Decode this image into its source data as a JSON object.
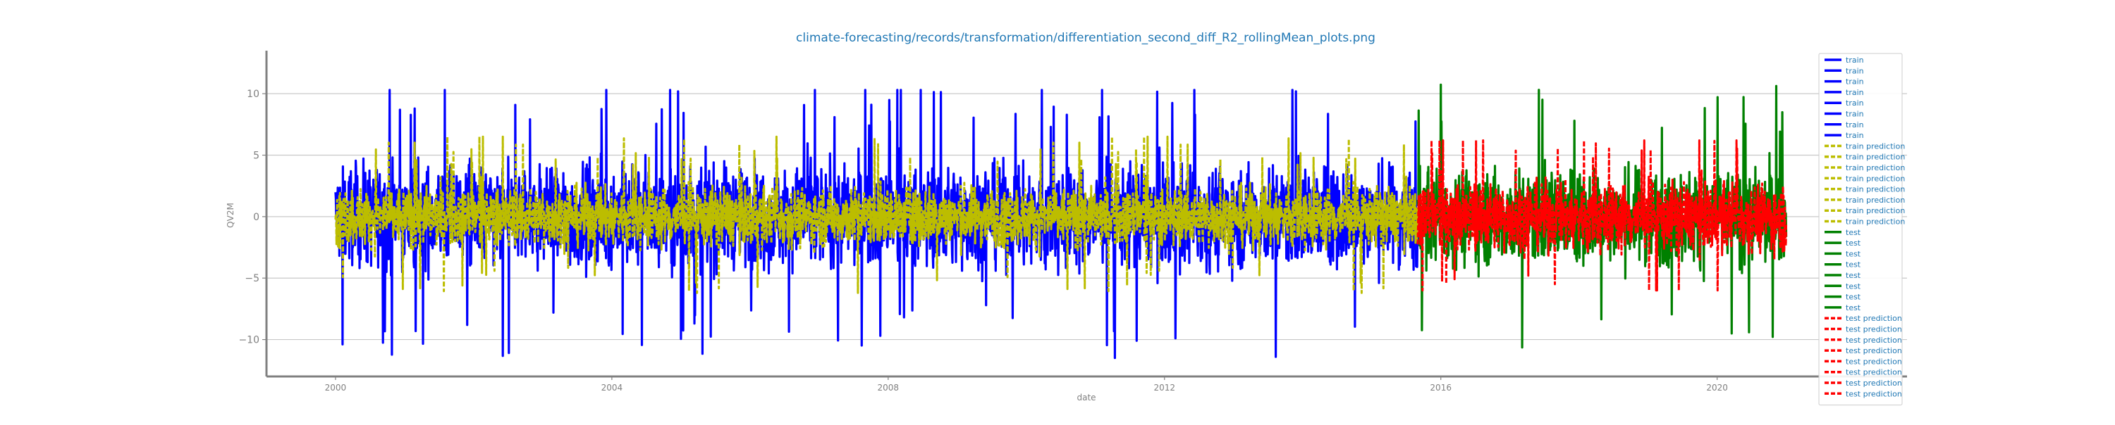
{
  "chart_data": {
    "type": "line",
    "title": "climate-forecasting/records/transformation/differentiation_second_diff_R2_rollingMean_plots.png",
    "xlabel": "date",
    "ylabel": "QV2M",
    "xlim": [
      "1999-01-01",
      "2022-10-01"
    ],
    "ylim": [
      -13,
      13.5
    ],
    "x_ticks": [
      {
        "value": "2000-01-01",
        "label": "2000"
      },
      {
        "value": "2004-01-01",
        "label": "2004"
      },
      {
        "value": "2008-01-01",
        "label": "2008"
      },
      {
        "value": "2012-01-01",
        "label": "2012"
      },
      {
        "value": "2016-01-01",
        "label": "2016"
      },
      {
        "value": "2020-01-01",
        "label": "2020"
      }
    ],
    "y_ticks": [
      {
        "value": 10,
        "label": "10"
      },
      {
        "value": 5,
        "label": "5"
      },
      {
        "value": 0,
        "label": "0"
      },
      {
        "value": -5,
        "label": "−5"
      },
      {
        "value": -10,
        "label": "−10"
      }
    ],
    "grid": "horizontal",
    "legend_position": "top-right",
    "series": [
      {
        "name": "train",
        "role": "train",
        "color": "#0000ff",
        "style": "solid",
        "x_range": [
          "2000-01-01",
          "2015-09-01"
        ],
        "amplitude": 4.5,
        "extremes": [
          10.3,
          -11.8
        ]
      },
      {
        "name": "train prediction",
        "role": "train_pred",
        "color": "#bcbd00",
        "style": "dashed",
        "x_range": [
          "2000-01-01",
          "2015-09-01"
        ],
        "amplitude": 2.6,
        "extremes": [
          6.5,
          -6.2
        ]
      },
      {
        "name": "test",
        "role": "test",
        "color": "#008000",
        "style": "solid",
        "x_range": [
          "2015-09-01",
          "2020-12-31"
        ],
        "amplitude": 4.2,
        "extremes": [
          11.0,
          -12.0
        ]
      },
      {
        "name": "test prediction",
        "role": "test_pred",
        "color": "#ff0000",
        "style": "dashed",
        "x_range": [
          "2015-09-01",
          "2020-12-31"
        ],
        "amplitude": 3.0,
        "extremes": [
          6.2,
          -6.0
        ]
      }
    ],
    "legend": [
      {
        "label": "train",
        "color": "#0000ff",
        "style": "solid"
      },
      {
        "label": "train",
        "color": "#0000ff",
        "style": "solid"
      },
      {
        "label": "train",
        "color": "#0000ff",
        "style": "solid"
      },
      {
        "label": "train",
        "color": "#0000ff",
        "style": "solid"
      },
      {
        "label": "train",
        "color": "#0000ff",
        "style": "solid"
      },
      {
        "label": "train",
        "color": "#0000ff",
        "style": "solid"
      },
      {
        "label": "train",
        "color": "#0000ff",
        "style": "solid"
      },
      {
        "label": "train",
        "color": "#0000ff",
        "style": "solid"
      },
      {
        "label": "train prediction",
        "color": "#bcbd00",
        "style": "dashed"
      },
      {
        "label": "train prediction",
        "color": "#bcbd00",
        "style": "dashed"
      },
      {
        "label": "train prediction",
        "color": "#bcbd00",
        "style": "dashed"
      },
      {
        "label": "train prediction",
        "color": "#bcbd00",
        "style": "dashed"
      },
      {
        "label": "train prediction",
        "color": "#bcbd00",
        "style": "dashed"
      },
      {
        "label": "train prediction",
        "color": "#bcbd00",
        "style": "dashed"
      },
      {
        "label": "train prediction",
        "color": "#bcbd00",
        "style": "dashed"
      },
      {
        "label": "train prediction",
        "color": "#bcbd00",
        "style": "dashed"
      },
      {
        "label": "test",
        "color": "#008000",
        "style": "solid"
      },
      {
        "label": "test",
        "color": "#008000",
        "style": "solid"
      },
      {
        "label": "test",
        "color": "#008000",
        "style": "solid"
      },
      {
        "label": "test",
        "color": "#008000",
        "style": "solid"
      },
      {
        "label": "test",
        "color": "#008000",
        "style": "solid"
      },
      {
        "label": "test",
        "color": "#008000",
        "style": "solid"
      },
      {
        "label": "test",
        "color": "#008000",
        "style": "solid"
      },
      {
        "label": "test",
        "color": "#008000",
        "style": "solid"
      },
      {
        "label": "test prediction",
        "color": "#ff0000",
        "style": "dashed"
      },
      {
        "label": "test prediction",
        "color": "#ff0000",
        "style": "dashed"
      },
      {
        "label": "test prediction",
        "color": "#ff0000",
        "style": "dashed"
      },
      {
        "label": "test prediction",
        "color": "#ff0000",
        "style": "dashed"
      },
      {
        "label": "test prediction",
        "color": "#ff0000",
        "style": "dashed"
      },
      {
        "label": "test prediction",
        "color": "#ff0000",
        "style": "dashed"
      },
      {
        "label": "test prediction",
        "color": "#ff0000",
        "style": "dashed"
      },
      {
        "label": "test prediction",
        "color": "#ff0000",
        "style": "dashed"
      }
    ],
    "colors": {
      "title": "#1f77b4",
      "axis_label": "#808080",
      "tick_label": "#808080",
      "legend_text": "#1f77b4",
      "grid": "#c8c8c8",
      "spine": "#808080"
    }
  }
}
